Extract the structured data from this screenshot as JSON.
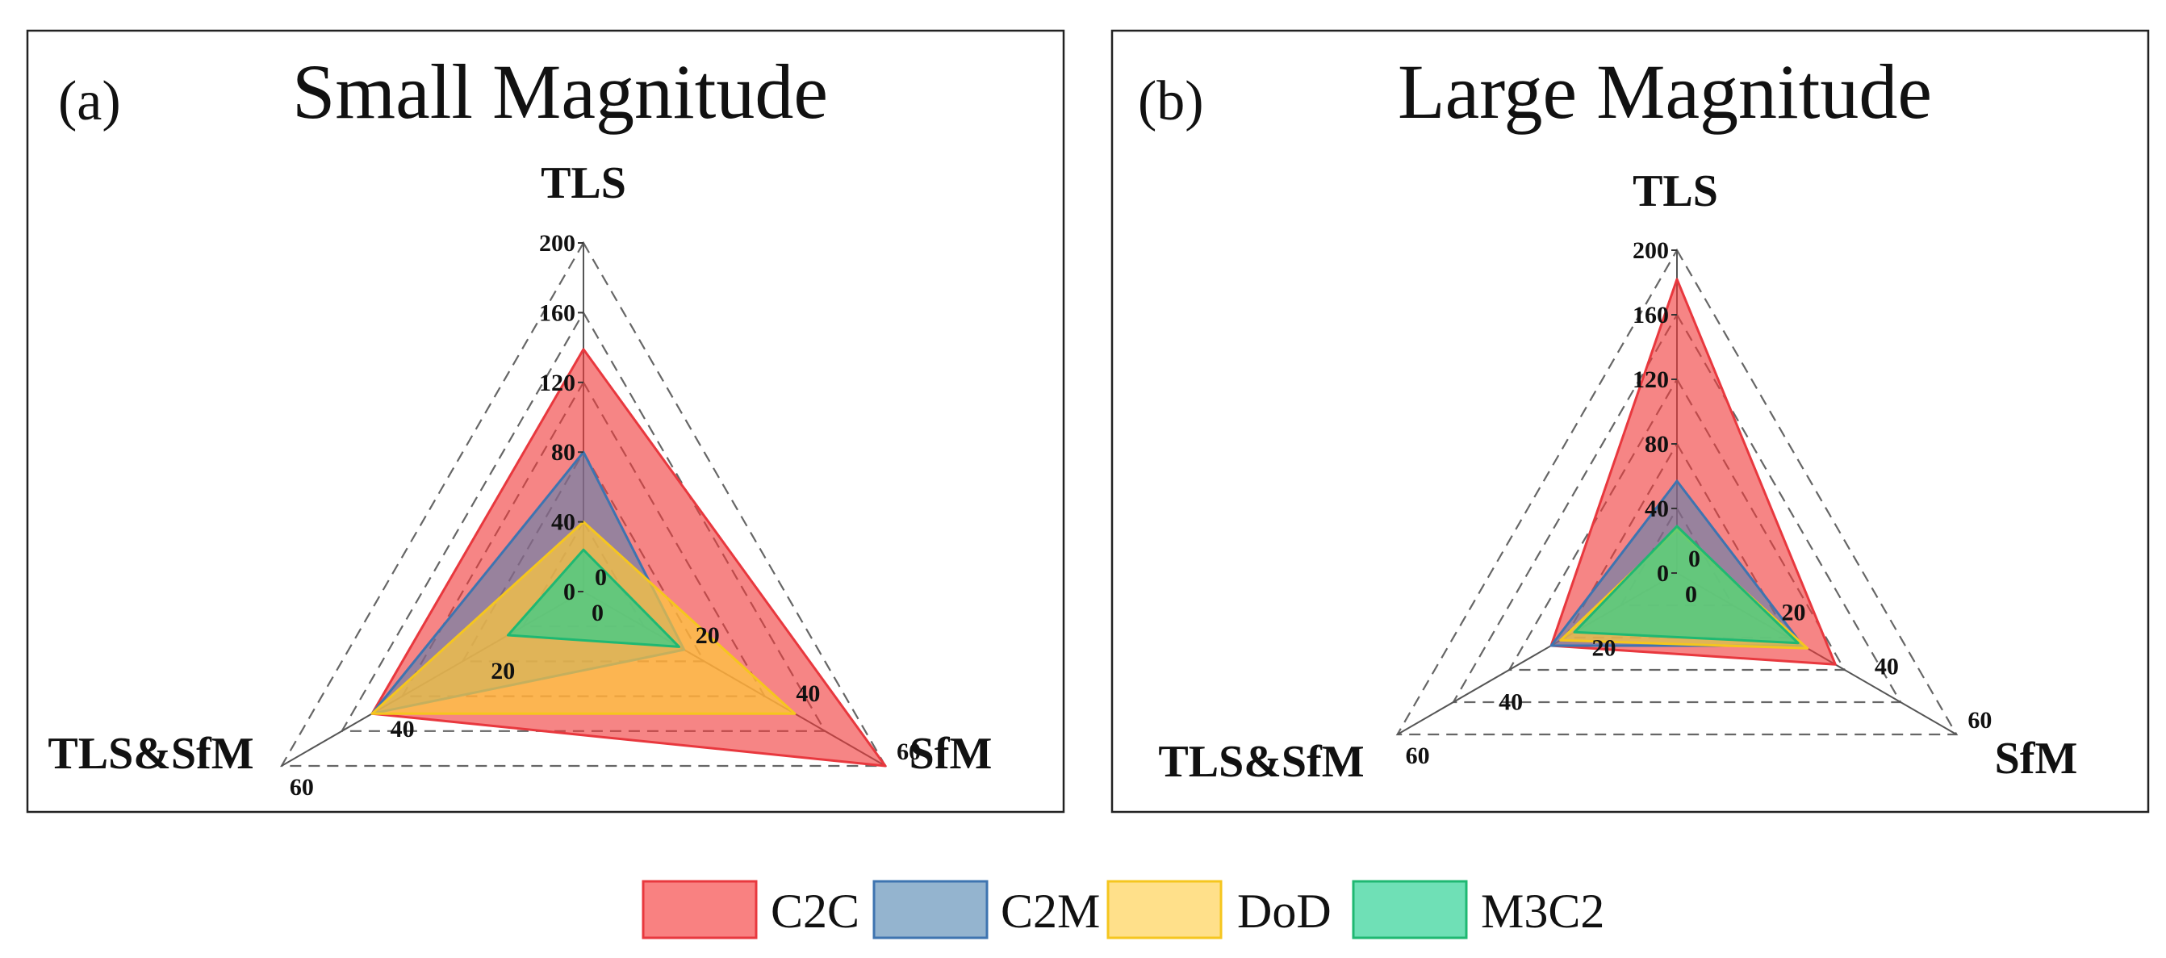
{
  "legend": [
    {
      "name": "C2C",
      "fill": "#f03a3a",
      "fill_opacity": 0.62,
      "stroke": "#e8383e",
      "swatch": "#f98181"
    },
    {
      "name": "C2M",
      "fill": "#4a7fb0",
      "fill_opacity": 0.55,
      "stroke": "#3e74b0",
      "swatch": "#94b4cf"
    },
    {
      "name": "DoD",
      "fill": "#ffc93a",
      "fill_opacity": 0.7,
      "stroke": "#f5c61e",
      "swatch": "#ffe08a"
    },
    {
      "name": "M3C2",
      "fill": "#2fcf8c",
      "fill_opacity": 0.7,
      "stroke": "#1fb872",
      "swatch": "#6fe0b6"
    }
  ],
  "chart_data": [
    {
      "type": "radar",
      "panel_label": "(a)",
      "title": "Small Magnitude",
      "axes": [
        {
          "name": "TLS",
          "ticks": [
            "0",
            "40",
            "80",
            "120",
            "160",
            "200"
          ],
          "max": 200
        },
        {
          "name": "SfM",
          "ticks": [
            "0",
            "20",
            "40",
            "60"
          ],
          "max": 60
        },
        {
          "name": "TLS&SfM",
          "ticks": [
            "0",
            "20",
            "40",
            "60"
          ],
          "max": 60
        }
      ],
      "series": [
        {
          "name": "C2C",
          "values": [
            139,
            60,
            42
          ]
        },
        {
          "name": "C2M",
          "values": [
            80,
            20,
            42
          ]
        },
        {
          "name": "DoD",
          "values": [
            40,
            42,
            42
          ]
        },
        {
          "name": "M3C2",
          "values": [
            24,
            19,
            15
          ]
        }
      ]
    },
    {
      "type": "radar",
      "panel_label": "(b)",
      "title": "Large Magnitude",
      "axes": [
        {
          "name": "TLS",
          "ticks": [
            "0",
            "40",
            "80",
            "120",
            "160",
            "200"
          ],
          "max": 200
        },
        {
          "name": "SfM",
          "ticks": [
            "0",
            "20",
            "40",
            "60"
          ],
          "max": 60
        },
        {
          "name": "TLS&SfM",
          "ticks": [
            "0",
            "20",
            "40",
            "60"
          ],
          "max": 60
        }
      ],
      "series": [
        {
          "name": "C2C",
          "values": [
            182,
            34,
            27
          ]
        },
        {
          "name": "C2M",
          "values": [
            57,
            27,
            27
          ]
        },
        {
          "name": "DoD",
          "values": [
            27,
            28,
            25
          ]
        },
        {
          "name": "M3C2",
          "values": [
            29,
            26,
            22
          ]
        }
      ]
    }
  ]
}
